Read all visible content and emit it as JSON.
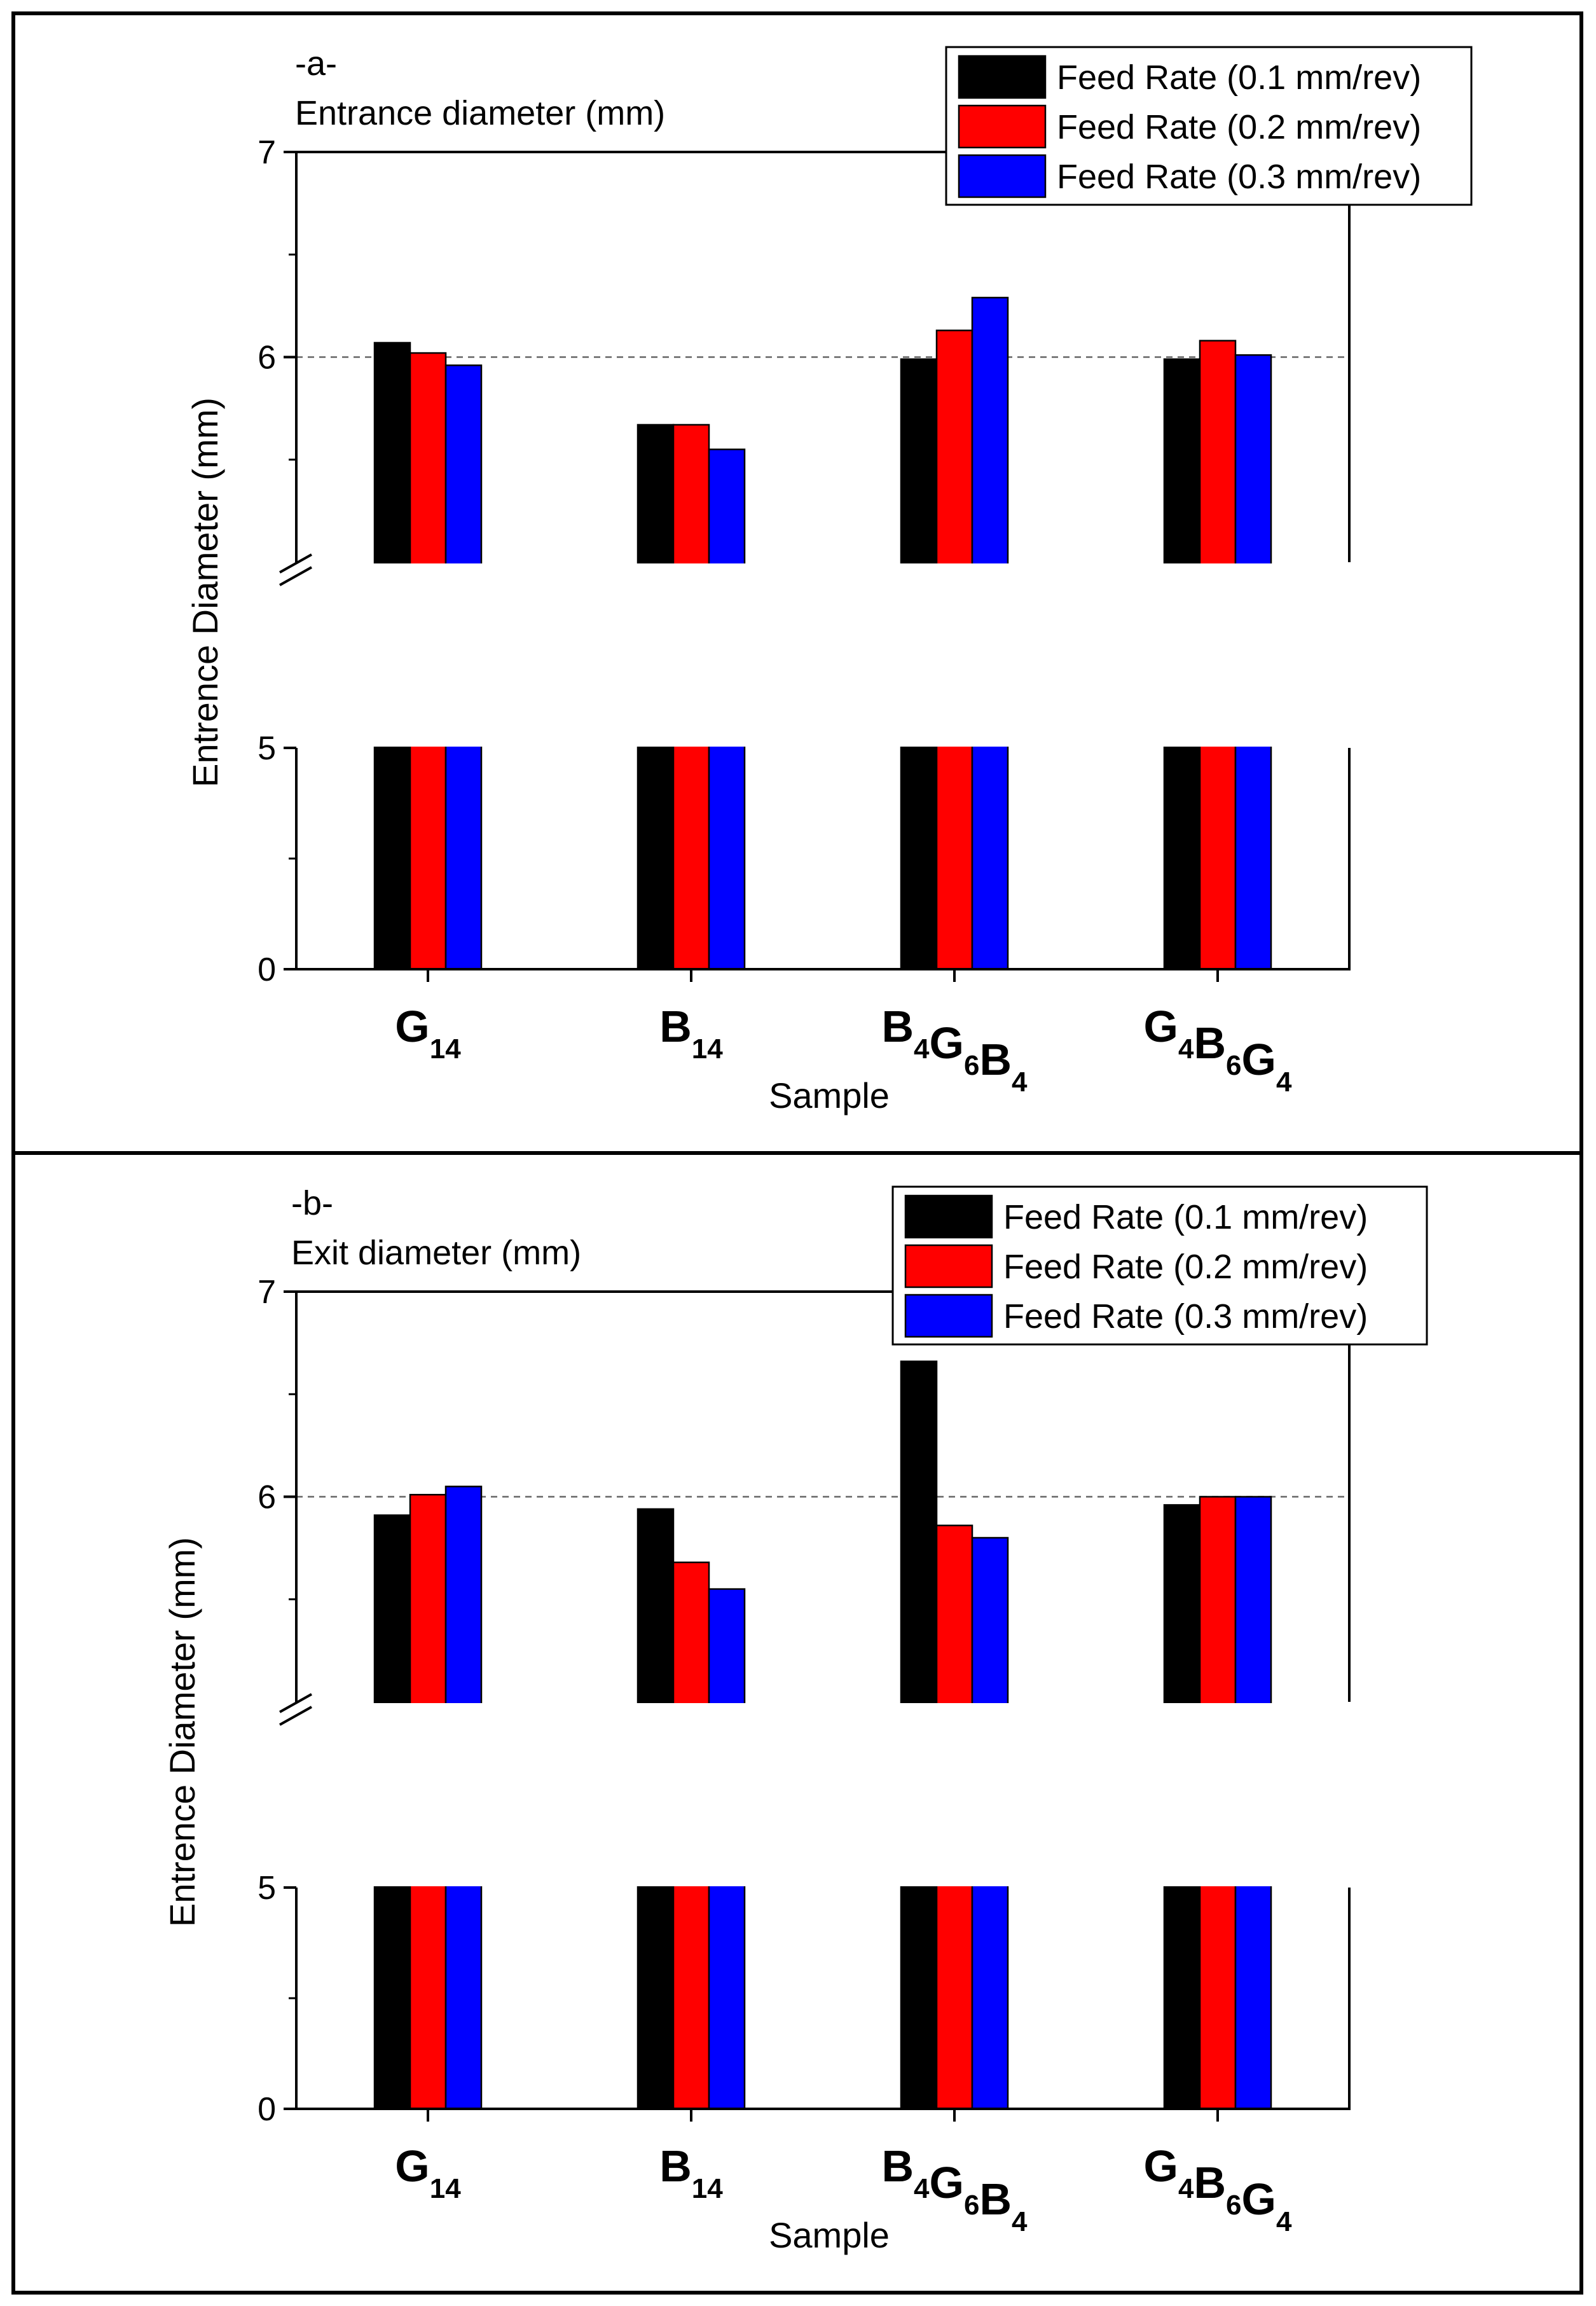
{
  "chart_data": [
    {
      "type": "bar",
      "panel_label": "-a-",
      "subtitle": "Entrance diameter (mm)",
      "xlabel": "Sample",
      "ylabel": "Entrence Diameter (mm)",
      "categories": [
        {
          "main": [
            "G"
          ],
          "sub": [
            "14"
          ]
        },
        {
          "main": [
            "B"
          ],
          "sub": [
            "14"
          ]
        },
        {
          "main": [
            "B",
            "G",
            "B"
          ],
          "sub": [
            "4",
            "6",
            "4"
          ]
        },
        {
          "main": [
            "G",
            "B",
            "G"
          ],
          "sub": [
            "4",
            "6",
            "4"
          ]
        }
      ],
      "series": [
        {
          "name": "Feed Rate (0.1 mm/rev)",
          "color": "#000000",
          "values": [
            6.07,
            5.67,
            5.99,
            5.99
          ]
        },
        {
          "name": "Feed Rate (0.2 mm/rev)",
          "color": "#ff0000",
          "values": [
            6.02,
            5.67,
            6.13,
            6.08
          ]
        },
        {
          "name": "Feed Rate (0.3 mm/rev)",
          "color": "#0000ff",
          "values": [
            5.96,
            5.55,
            6.29,
            6.01
          ]
        }
      ],
      "y_ticks": [
        "0",
        "5",
        "6",
        "7"
      ],
      "y_axis_break": [
        0,
        5
      ],
      "ylim": [
        0,
        7
      ],
      "reference_line": 6,
      "legend_position": "top-right"
    },
    {
      "type": "bar",
      "panel_label": "-b-",
      "subtitle": "Exit diameter (mm)",
      "xlabel": "Sample",
      "ylabel": "Entrence Diameter (mm)",
      "categories": [
        {
          "main": [
            "G"
          ],
          "sub": [
            "14"
          ]
        },
        {
          "main": [
            "B"
          ],
          "sub": [
            "14"
          ]
        },
        {
          "main": [
            "B",
            "G",
            "B"
          ],
          "sub": [
            "4",
            "6",
            "4"
          ]
        },
        {
          "main": [
            "G",
            "B",
            "G"
          ],
          "sub": [
            "4",
            "6",
            "4"
          ]
        }
      ],
      "series": [
        {
          "name": "Feed Rate (0.1 mm/rev)",
          "color": "#000000",
          "values": [
            5.91,
            5.94,
            6.66,
            5.96
          ]
        },
        {
          "name": "Feed Rate (0.2 mm/rev)",
          "color": "#ff0000",
          "values": [
            6.01,
            5.68,
            5.86,
            6.0
          ]
        },
        {
          "name": "Feed Rate (0.3 mm/rev)",
          "color": "#0000ff",
          "values": [
            6.05,
            5.55,
            5.8,
            6.0
          ]
        }
      ],
      "y_ticks": [
        "0",
        "5",
        "6",
        "7"
      ],
      "y_axis_break": [
        0,
        5
      ],
      "ylim": [
        0,
        7
      ],
      "reference_line": 6,
      "legend_position": "top-right"
    }
  ]
}
